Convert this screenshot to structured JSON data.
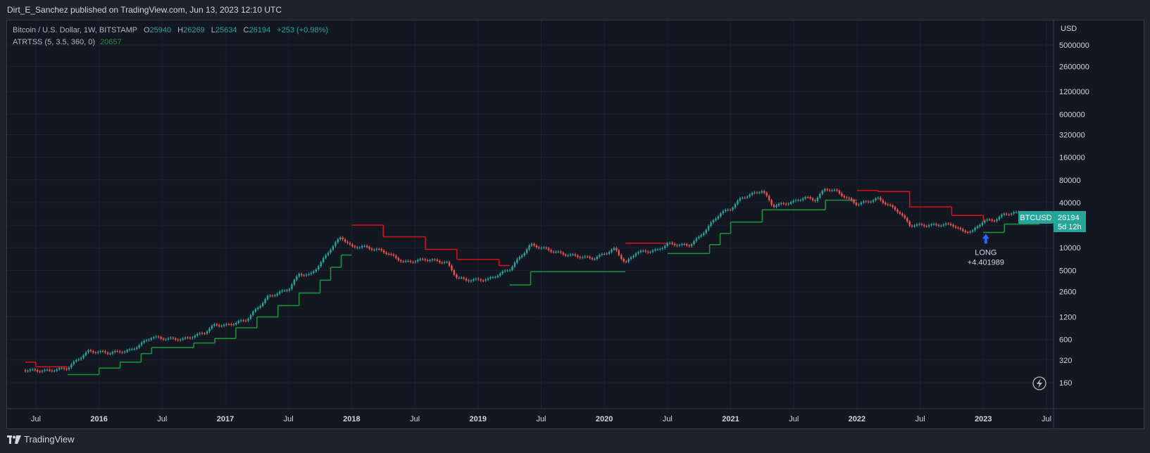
{
  "header": {
    "attribution": "Dirt_E_Sanchez published on TradingView.com, Jun 13, 2023 12:10 UTC"
  },
  "legend": {
    "symbol": "Bitcoin / U.S. Dollar, 1W, BITSTAMP",
    "o_label": "O",
    "o_value": "25940",
    "h_label": "H",
    "h_value": "26269",
    "l_label": "L",
    "l_value": "25634",
    "c_label": "C",
    "c_value": "26194",
    "change": "+253 (+0.98%)",
    "indicator": "ATRTSS (5, 3.5, 360, 0)",
    "indicator_value": "20657"
  },
  "price_badge": {
    "symbol": "BTCUSD",
    "price": "26194",
    "countdown": "5d 12h"
  },
  "signal": {
    "label": "LONG",
    "value": "+4.401989"
  },
  "footer": {
    "brand": "TradingView"
  },
  "colors": {
    "background": "#131722",
    "up": "#26a69a",
    "down": "#ef5350",
    "stop_long": "#1b8f3a",
    "stop_short": "#d0121d",
    "signal_arrow": "#2962ff",
    "badge": "#26a69a"
  },
  "chart_data": {
    "type": "candlestick",
    "scale": "log",
    "y_unit": "USD",
    "y_ticks": [
      160,
      320,
      600,
      1200,
      2600,
      5000,
      10000,
      20000,
      40000,
      80000,
      160000,
      320000,
      600000,
      1200000,
      2600000,
      5000000
    ],
    "x_ticks": [
      "Jul",
      "2016",
      "Jul",
      "2017",
      "Jul",
      "2018",
      "Jul",
      "2019",
      "Jul",
      "2020",
      "Jul",
      "2021",
      "Jul",
      "2022",
      "Jul",
      "2023",
      "Jul"
    ],
    "x_range": [
      "2015-06",
      "2023-07"
    ],
    "close_series": [
      [
        "2015-06",
        235
      ],
      [
        "2015-08",
        230
      ],
      [
        "2015-10",
        250
      ],
      [
        "2015-11",
        330
      ],
      [
        "2015-12",
        420
      ],
      [
        "2016-02",
        400
      ],
      [
        "2016-04",
        430
      ],
      [
        "2016-06",
        650
      ],
      [
        "2016-07",
        620
      ],
      [
        "2016-09",
        605
      ],
      [
        "2016-11",
        740
      ],
      [
        "2016-12",
        950
      ],
      [
        "2017-01",
        920
      ],
      [
        "2017-03",
        1100
      ],
      [
        "2017-05",
        2200
      ],
      [
        "2017-06",
        2500
      ],
      [
        "2017-07",
        2800
      ],
      [
        "2017-08",
        4500
      ],
      [
        "2017-09",
        4300
      ],
      [
        "2017-10",
        6100
      ],
      [
        "2017-11",
        9800
      ],
      [
        "2017-12",
        14000
      ],
      [
        "2018-01",
        10200
      ],
      [
        "2018-02",
        10400
      ],
      [
        "2018-04",
        9000
      ],
      [
        "2018-06",
        6400
      ],
      [
        "2018-08",
        7000
      ],
      [
        "2018-10",
        6400
      ],
      [
        "2018-11",
        4000
      ],
      [
        "2018-12",
        3700
      ],
      [
        "2019-02",
        3800
      ],
      [
        "2019-04",
        5200
      ],
      [
        "2019-06",
        11000
      ],
      [
        "2019-07",
        10000
      ],
      [
        "2019-09",
        8300
      ],
      [
        "2019-11",
        7500
      ],
      [
        "2019-12",
        7200
      ],
      [
        "2020-02",
        9700
      ],
      [
        "2020-03",
        6200
      ],
      [
        "2020-04",
        8700
      ],
      [
        "2020-06",
        9200
      ],
      [
        "2020-07",
        11300
      ],
      [
        "2020-09",
        10700
      ],
      [
        "2020-10",
        13800
      ],
      [
        "2020-12",
        29000
      ],
      [
        "2021-01",
        33000
      ],
      [
        "2021-02",
        46000
      ],
      [
        "2021-04",
        58000
      ],
      [
        "2021-05",
        36000
      ],
      [
        "2021-07",
        41000
      ],
      [
        "2021-08",
        47000
      ],
      [
        "2021-09",
        43000
      ],
      [
        "2021-10",
        61000
      ],
      [
        "2021-11",
        57000
      ],
      [
        "2021-12",
        46000
      ],
      [
        "2022-01",
        38000
      ],
      [
        "2022-03",
        45000
      ],
      [
        "2022-05",
        30000
      ],
      [
        "2022-06",
        20000
      ],
      [
        "2022-08",
        20000
      ],
      [
        "2022-10",
        20500
      ],
      [
        "2022-11",
        16500
      ],
      [
        "2022-12",
        16600
      ],
      [
        "2023-01",
        23000
      ],
      [
        "2023-02",
        23100
      ],
      [
        "2023-03",
        28000
      ],
      [
        "2023-04",
        29300
      ],
      [
        "2023-05",
        27000
      ],
      [
        "2023-06",
        26194
      ]
    ],
    "atr_stop": [
      [
        "2015-06",
        300,
        "short"
      ],
      [
        "2015-07",
        260,
        "short"
      ],
      [
        "2015-10",
        205,
        "long"
      ],
      [
        "2016-01",
        250,
        "long"
      ],
      [
        "2016-03",
        300,
        "long"
      ],
      [
        "2016-05",
        390,
        "long"
      ],
      [
        "2016-06",
        470,
        "long"
      ],
      [
        "2016-10",
        540,
        "long"
      ],
      [
        "2016-12",
        620,
        "long"
      ],
      [
        "2017-02",
        860,
        "long"
      ],
      [
        "2017-04",
        1200,
        "long"
      ],
      [
        "2017-06",
        1700,
        "long"
      ],
      [
        "2017-08",
        2500,
        "long"
      ],
      [
        "2017-10",
        3700,
        "long"
      ],
      [
        "2017-11",
        5500,
        "long"
      ],
      [
        "2017-12",
        8000,
        "long"
      ],
      [
        "2018-01",
        20000,
        "short"
      ],
      [
        "2018-04",
        14000,
        "short"
      ],
      [
        "2018-08",
        9500,
        "short"
      ],
      [
        "2018-11",
        7000,
        "short"
      ],
      [
        "2019-03",
        5800,
        "short"
      ],
      [
        "2019-04",
        3200,
        "long"
      ],
      [
        "2019-06",
        4800,
        "long"
      ],
      [
        "2020-03",
        11500,
        "short"
      ],
      [
        "2020-07",
        11500,
        "short"
      ],
      [
        "2020-07",
        8400,
        "long"
      ],
      [
        "2020-11",
        11000,
        "long"
      ],
      [
        "2020-12",
        15500,
        "long"
      ],
      [
        "2021-01",
        22000,
        "long"
      ],
      [
        "2021-04",
        32000,
        "long"
      ],
      [
        "2021-09",
        32000,
        "long"
      ],
      [
        "2021-10",
        43000,
        "long"
      ],
      [
        "2022-01",
        58000,
        "short"
      ],
      [
        "2022-03",
        56000,
        "short"
      ],
      [
        "2022-06",
        35000,
        "short"
      ],
      [
        "2022-10",
        27000,
        "short"
      ],
      [
        "2023-01",
        22000,
        "short"
      ],
      [
        "2023-01",
        16000,
        "long"
      ],
      [
        "2023-03",
        20657,
        "long"
      ]
    ]
  }
}
